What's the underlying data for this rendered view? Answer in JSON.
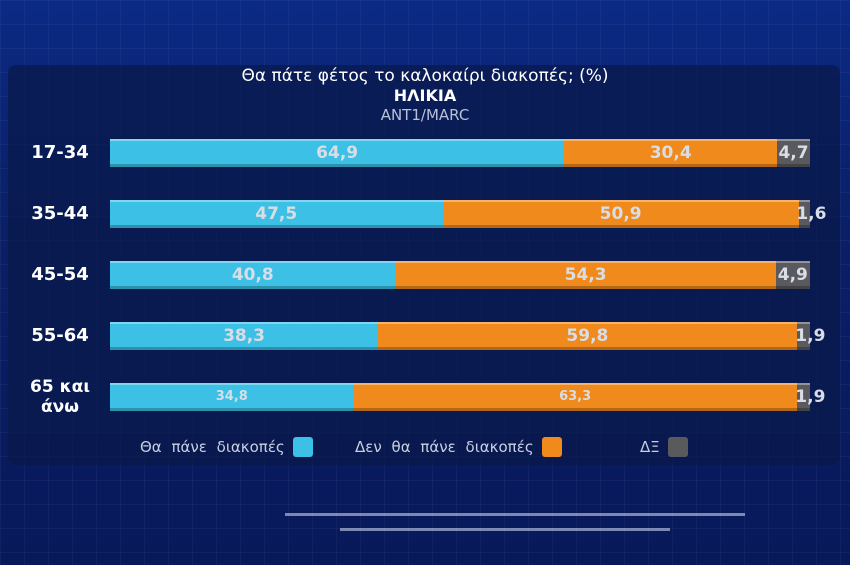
{
  "chart_data": {
    "type": "bar",
    "orientation": "horizontal-stacked",
    "title": "Θα πάτε φέτος το καλοκαίρι διακοπές; (%)",
    "subtitle": "ΗΛΙΚΙΑ",
    "source": "ANT1/MARC",
    "categories": [
      "17-34",
      "35-44",
      "45-54",
      "55-64",
      "65 και άνω"
    ],
    "series": [
      {
        "name": "Θα πάνε διακοπές",
        "color": "#3cc0e6",
        "values": [
          64.9,
          47.5,
          40.8,
          38.3,
          34.8
        ],
        "labels": [
          "64,9",
          "47,5",
          "40,8",
          "38,3",
          "34,8"
        ]
      },
      {
        "name": "Δεν θα πάνε διακοπές",
        "color": "#f08a1c",
        "values": [
          30.4,
          50.9,
          54.3,
          59.8,
          63.3
        ],
        "labels": [
          "30,4",
          "50,9",
          "54,3",
          "59,8",
          "63,3"
        ]
      },
      {
        "name": "ΔΞ",
        "color": "#5a5a5e",
        "values": [
          4.7,
          1.6,
          4.9,
          1.9,
          1.9
        ],
        "labels": [
          "4,7",
          "1,6",
          "4,9",
          "1,9",
          "1,9"
        ]
      }
    ],
    "xlim": [
      0,
      100
    ],
    "legend": "bottom"
  }
}
